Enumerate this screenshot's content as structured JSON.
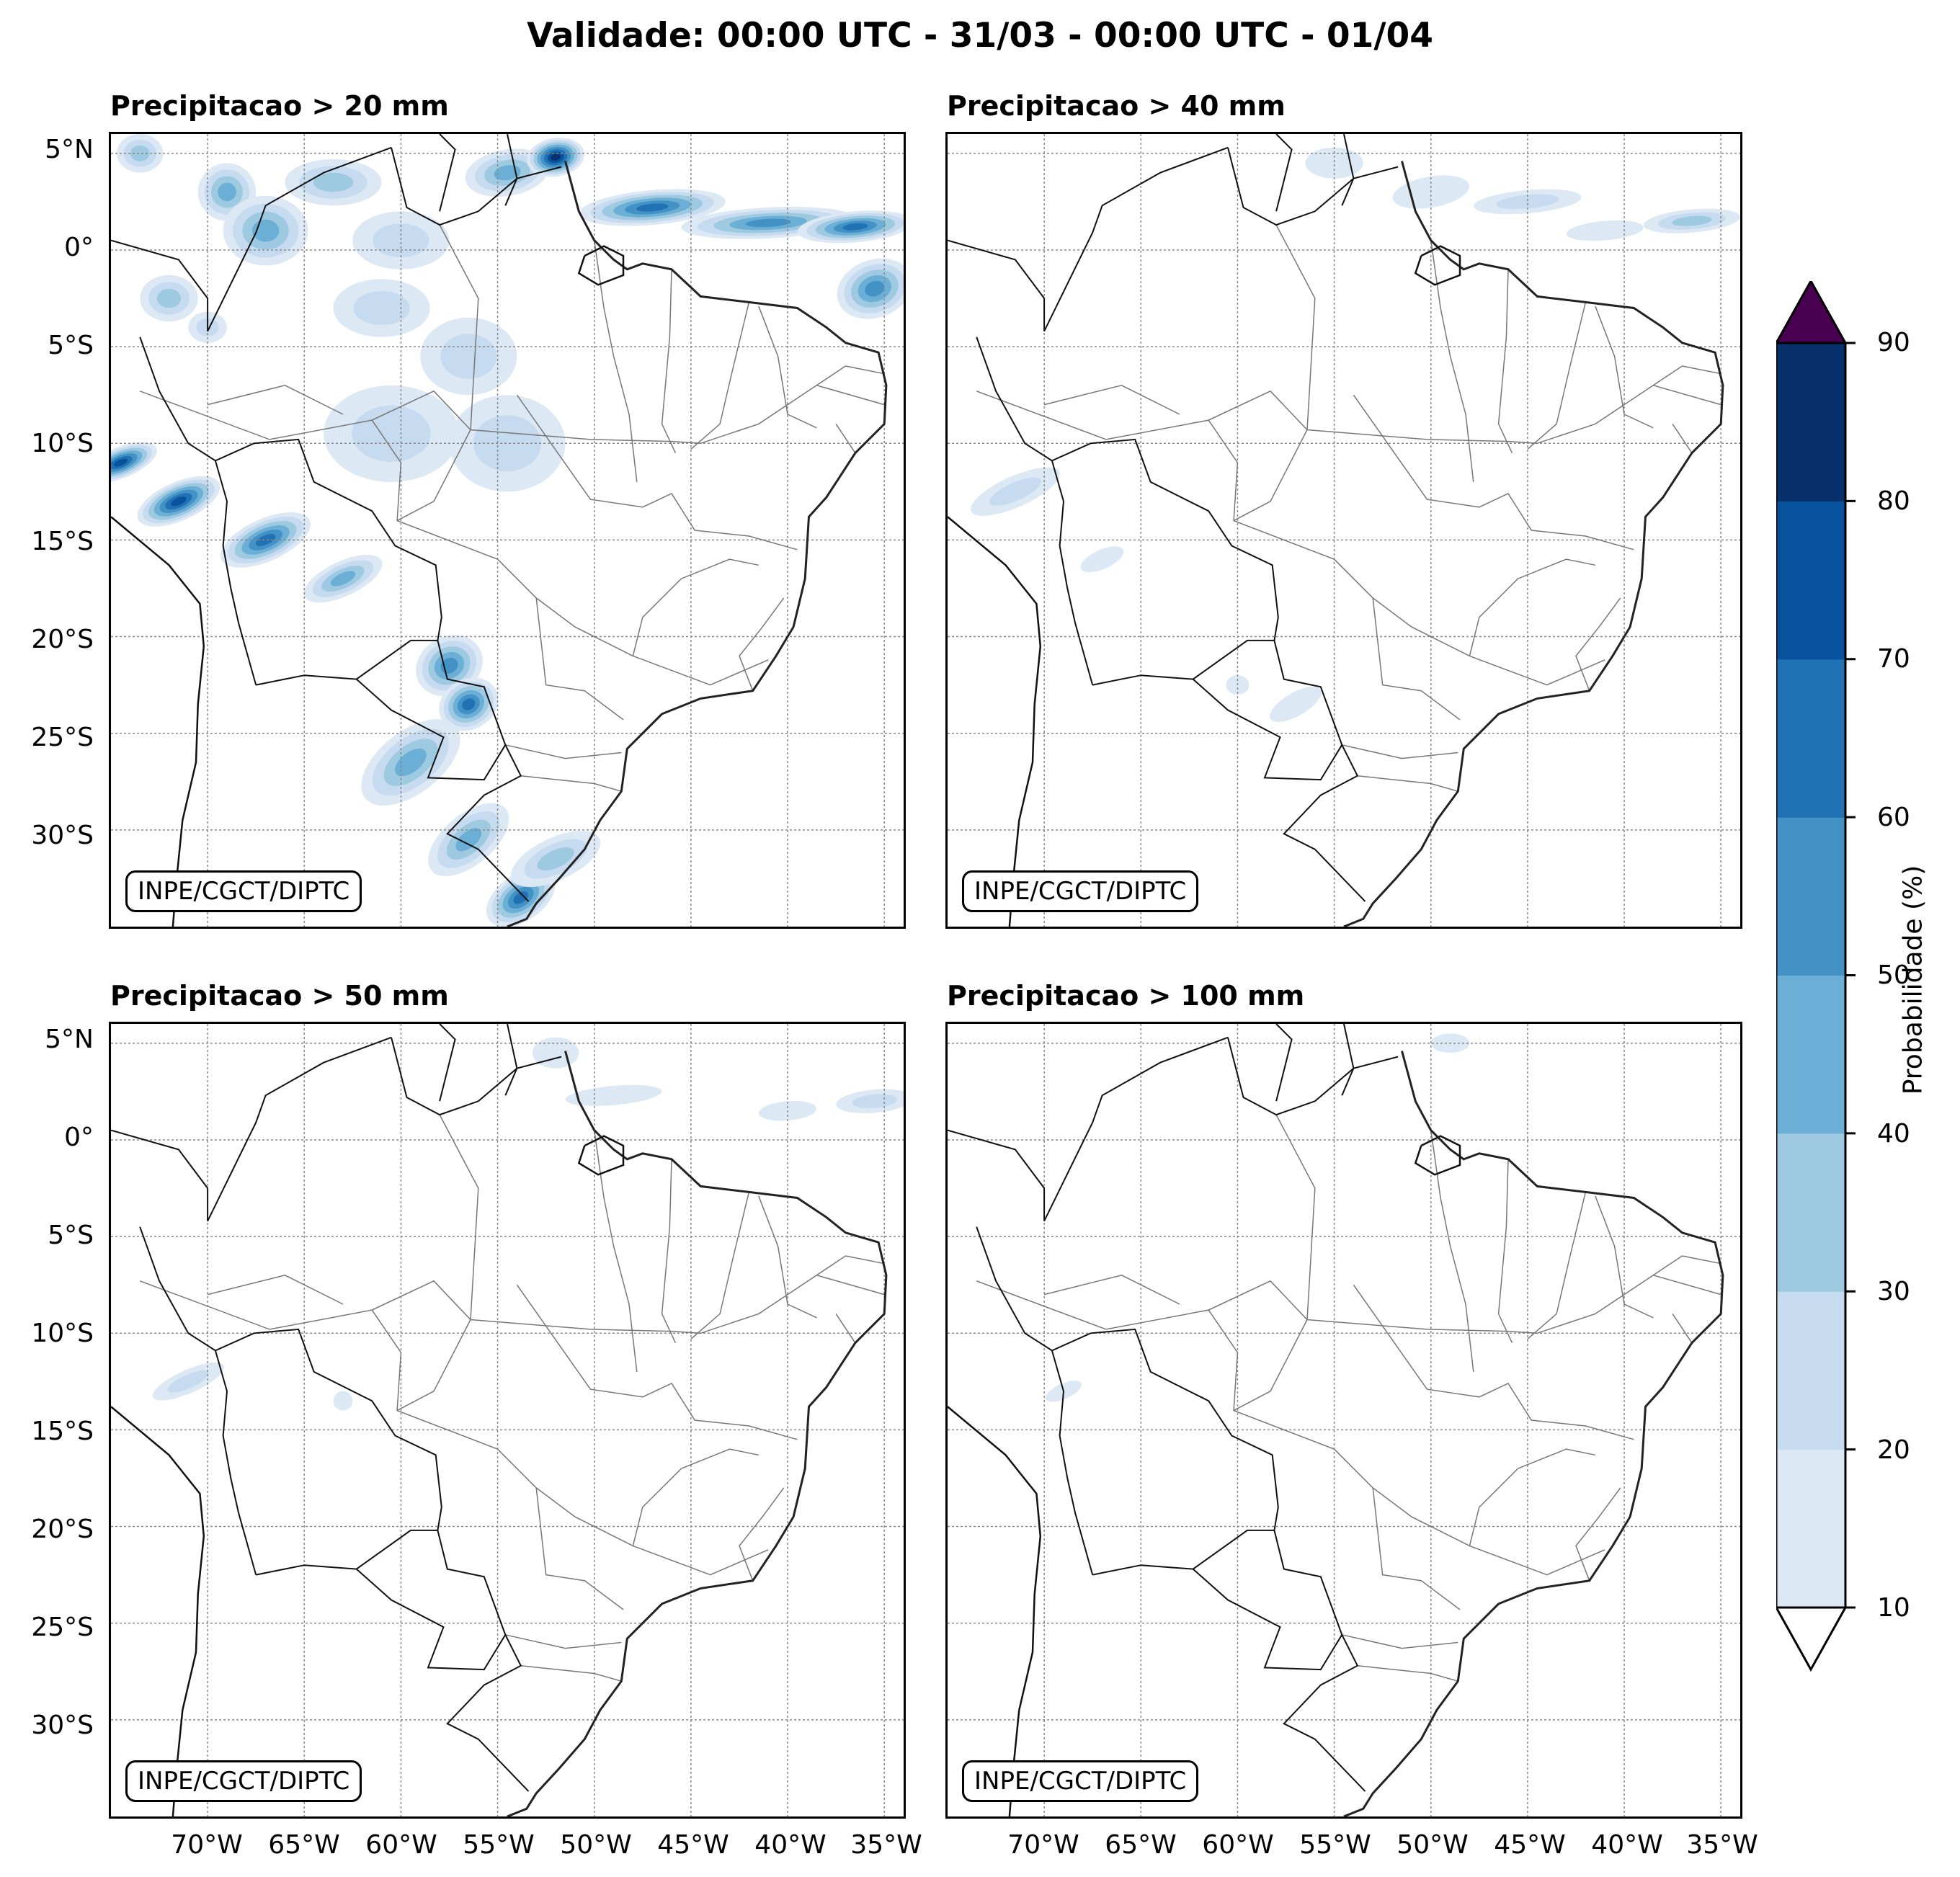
{
  "title": "Validade: 00:00 UTC - 31/03 - 00:00 UTC - 01/04",
  "credit": "INPE/CGCT/DIPTC",
  "panels": [
    {
      "title": "Precipitacao > 20 mm"
    },
    {
      "title": "Precipitacao > 40 mm"
    },
    {
      "title": "Precipitacao > 50 mm"
    },
    {
      "title": "Precipitacao > 100 mm"
    }
  ],
  "lat_ticks": [
    "5°N",
    "0°",
    "5°S",
    "10°S",
    "15°S",
    "20°S",
    "25°S",
    "30°S"
  ],
  "lon_ticks": [
    "70°W",
    "65°W",
    "60°W",
    "55°W",
    "50°W",
    "45°W",
    "40°W",
    "35°W"
  ],
  "colorbar": {
    "label": "Probabilidade (%)",
    "ticks": [
      "10",
      "20",
      "30",
      "40",
      "50",
      "60",
      "70",
      "80",
      "90"
    ],
    "colors": [
      "#dde8f5",
      "#c6dbef",
      "#9ecae1",
      "#6baed6",
      "#4292c6",
      "#2171b5",
      "#08519c",
      "#08306b"
    ],
    "over_color": "#4a0050",
    "under_color": "#ffffff"
  },
  "map_extent": {
    "lon_min": -75,
    "lon_max": -34,
    "lat_min": -35,
    "lat_max": 6
  }
}
